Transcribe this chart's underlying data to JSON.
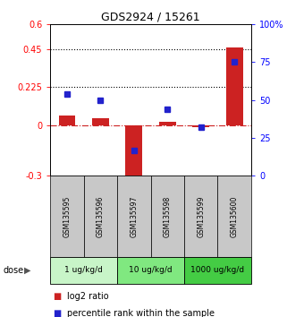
{
  "title": "GDS2924 / 15261",
  "samples": [
    "GSM135595",
    "GSM135596",
    "GSM135597",
    "GSM135598",
    "GSM135599",
    "GSM135600"
  ],
  "log2_ratio": [
    0.055,
    0.042,
    -0.365,
    0.022,
    -0.012,
    0.46
  ],
  "percentile_rank": [
    54,
    50,
    17,
    44,
    32,
    75
  ],
  "left_ylim": [
    -0.3,
    0.6
  ],
  "right_ylim": [
    0,
    100
  ],
  "left_yticks": [
    -0.3,
    0.0,
    0.225,
    0.45,
    0.6
  ],
  "left_yticklabels": [
    "-0.3",
    "0",
    "0.225",
    "0.45",
    "0.6"
  ],
  "right_yticks": [
    0,
    25,
    50,
    75,
    100
  ],
  "right_yticklabels": [
    "0",
    "25",
    "50",
    "75",
    "100%"
  ],
  "hlines": [
    0.225,
    0.45
  ],
  "bar_color_red": "#cc2222",
  "bar_color_blue": "#2222cc",
  "bar_width": 0.5,
  "marker_size": 5,
  "dose_groups": [
    {
      "label": "1 ug/kg/d",
      "start": 0,
      "end": 1,
      "color": "#c8f5c8"
    },
    {
      "label": "10 ug/kg/d",
      "start": 2,
      "end": 3,
      "color": "#80e880"
    },
    {
      "label": "1000 ug/kg/d",
      "start": 4,
      "end": 5,
      "color": "#44cc44"
    }
  ],
  "sample_box_color": "#c8c8c8",
  "dose_label": "dose",
  "legend_red": "log2 ratio",
  "legend_blue": "percentile rank within the sample"
}
